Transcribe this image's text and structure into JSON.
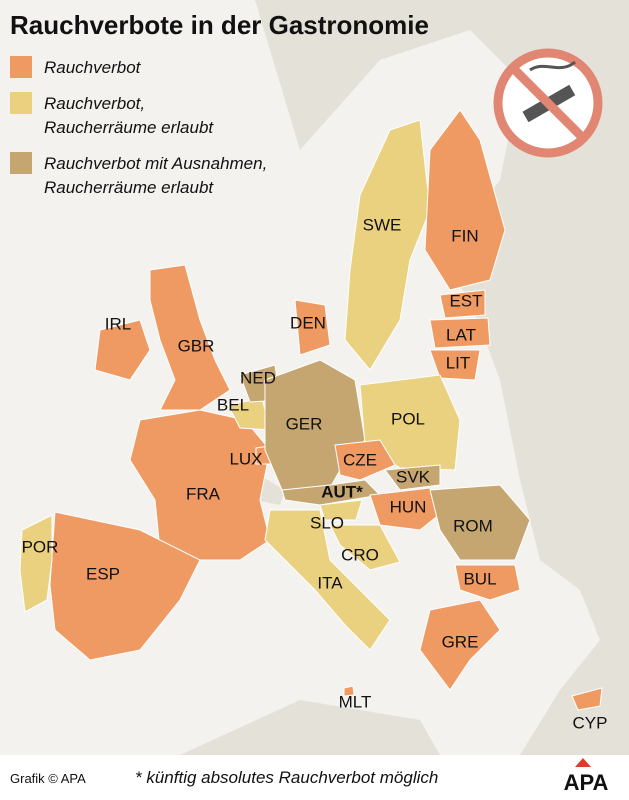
{
  "title": "Rauchverbote in der Gastronomie",
  "legend": [
    {
      "lines": [
        "Rauchverbot"
      ],
      "color": "#ee9a62"
    },
    {
      "lines": [
        "Rauchverbot,",
        "Raucherräume erlaubt"
      ],
      "color": "#ead180"
    },
    {
      "lines": [
        "Rauchverbot mit Ausnahmen,",
        "Raucherräume erlaubt"
      ],
      "color": "#c5a670"
    }
  ],
  "countries": [
    {
      "label": "IRL",
      "color": "#ee9a62"
    },
    {
      "label": "GBR",
      "color": "#ee9a62"
    },
    {
      "label": "FRA",
      "color": "#ee9a62"
    },
    {
      "label": "ESP",
      "color": "#ee9a62"
    },
    {
      "label": "POR",
      "color": "#ead180"
    },
    {
      "label": "LUX",
      "color": "#ee9a62"
    },
    {
      "label": "BEL",
      "color": "#ead180"
    },
    {
      "label": "NED",
      "color": "#c5a670"
    },
    {
      "label": "GER",
      "color": "#c5a670"
    },
    {
      "label": "DEN",
      "color": "#ee9a62"
    },
    {
      "label": "SWE",
      "color": "#ead180"
    },
    {
      "label": "FIN",
      "color": "#ee9a62"
    },
    {
      "label": "EST",
      "color": "#ee9a62"
    },
    {
      "label": "LAT",
      "color": "#ee9a62"
    },
    {
      "label": "LIT",
      "color": "#ee9a62"
    },
    {
      "label": "POL",
      "color": "#ead180"
    },
    {
      "label": "CZE",
      "color": "#ee9a62"
    },
    {
      "label": "SVK",
      "color": "#c5a670"
    },
    {
      "label": "AUT*",
      "color": "#c5a670"
    },
    {
      "label": "HUN",
      "color": "#ee9a62"
    },
    {
      "label": "SLO",
      "color": "#ead180"
    },
    {
      "label": "CRO",
      "color": "#ead180"
    },
    {
      "label": "ROM",
      "color": "#c5a670"
    },
    {
      "label": "BUL",
      "color": "#ee9a62"
    },
    {
      "label": "GRE",
      "color": "#ee9a62"
    },
    {
      "label": "ITA",
      "color": "#ead180"
    },
    {
      "label": "MLT",
      "color": "#ee9a62"
    },
    {
      "label": "CYP",
      "color": "#ee9a62"
    }
  ],
  "footer": {
    "source": "Grafik © APA",
    "note": "* künftig absolutes Rauchverbot möglich",
    "logo": "APA"
  }
}
